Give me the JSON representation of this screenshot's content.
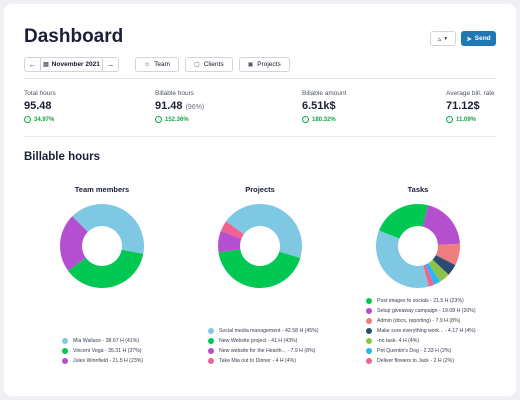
{
  "header": {
    "title": "Dashboard",
    "export_icon": "export-icon",
    "send_label": "Send",
    "send_icon": "paper-plane-icon"
  },
  "toolbar": {
    "prev_icon": "arrow-left-icon",
    "next_icon": "arrow-right-icon",
    "date_icon": "calendar-icon",
    "date_label": "November 2021",
    "filters": [
      {
        "label": "Team",
        "icon": "team-icon"
      },
      {
        "label": "Clients",
        "icon": "folder-icon"
      },
      {
        "label": "Projects",
        "icon": "briefcase-icon"
      }
    ]
  },
  "stats": [
    {
      "label": "Total hours",
      "value": "95.48",
      "sub": "",
      "change": "34.97%"
    },
    {
      "label": "Billable hours",
      "value": "91.48",
      "sub": "(96%)",
      "change": "152.36%"
    },
    {
      "label": "Billable amount",
      "value": "6.51k$",
      "sub": "",
      "change": "180.32%"
    },
    {
      "label": "Average bill. rate",
      "value": "71.12$",
      "sub": "",
      "change": "11.09%"
    }
  ],
  "section_title": "Billable hours",
  "chart_data": [
    {
      "type": "pie",
      "title": "Team members",
      "categories": [
        "Mia Wallace - 38.67 H (41%)",
        "Vincent Vega - 35.31 H (37%)",
        "Jules Winnfield - 21.5 H (23%)"
      ],
      "values": [
        38.67,
        35.31,
        21.5
      ],
      "colors": [
        "#7ec8e3",
        "#00c853",
        "#b44fcf"
      ]
    },
    {
      "type": "pie",
      "title": "Projects",
      "categories": [
        "Social media management - 42.58 H (45%)",
        "New Website project - 41 H (43%)",
        "New website for the Hearth... - 7.9 H (8%)",
        "Take Mia out to Dinner - 4 H (4%)"
      ],
      "values": [
        42.58,
        41,
        7.9,
        4
      ],
      "colors": [
        "#7ec8e3",
        "#00c853",
        "#b44fcf",
        "#f06292"
      ]
    },
    {
      "type": "pie",
      "title": "Tasks",
      "categories": [
        "Post images to socials - 21.5 H (23%)",
        "Setup giveaway campaign - 19.08 H (20%)",
        "Admin (docs, reporting) - 7.9 H (8%)",
        "Make sure everything work... - 4.17 H (4%)",
        "-no task- 4 H (4%)",
        "Pet Quentin's Dog - 2.33 H (2%)",
        "Deliver flowers to Jack - 2 H (2%)"
      ],
      "values": [
        21.5,
        19.08,
        7.9,
        4.17,
        4,
        2.33,
        2
      ],
      "colors": [
        "#00c853",
        "#b44fcf",
        "#f07d7d",
        "#2c4b73",
        "#8bc34a",
        "#29b6f6",
        "#f06292"
      ],
      "remainder": 33.07,
      "remainder_color": "#7ec8e3"
    }
  ]
}
